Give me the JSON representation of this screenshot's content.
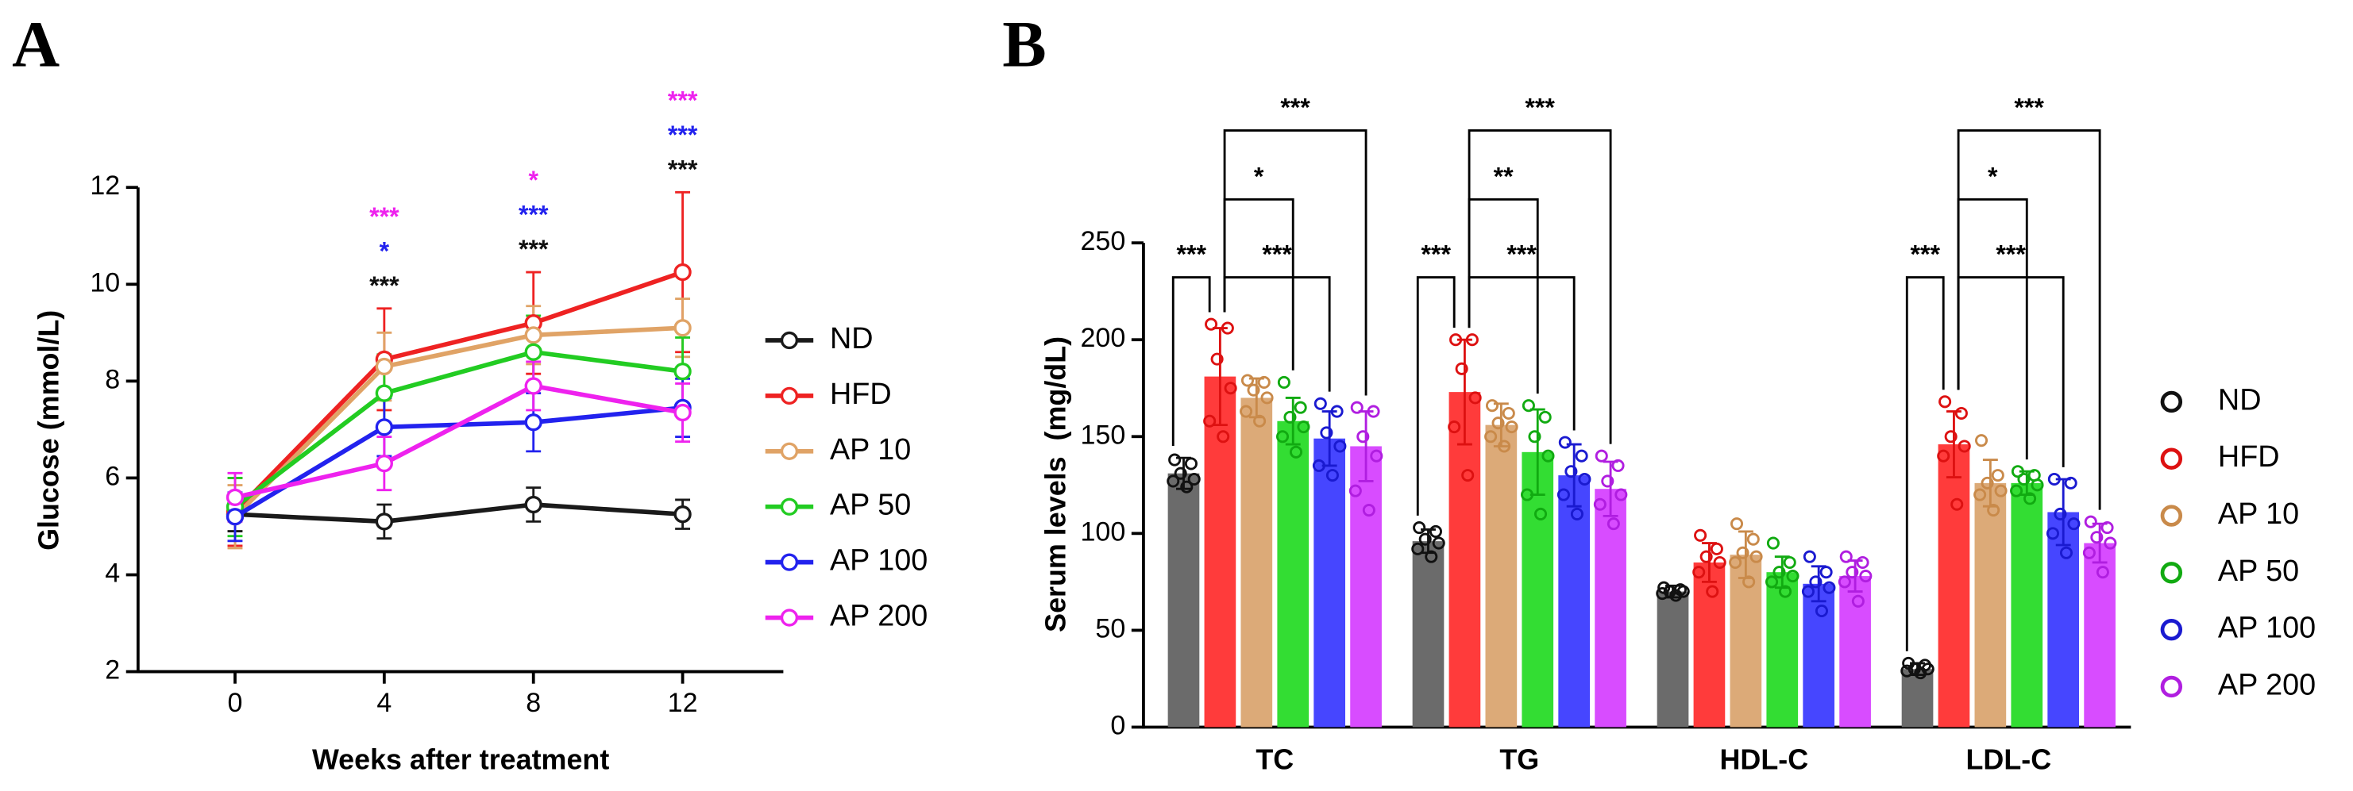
{
  "chart_data": [
    {
      "type": "line",
      "panel": "A",
      "xlabel": "Weeks after treatment",
      "ylabel": "Glucose (mmol/L)",
      "x": [
        0,
        4,
        8,
        12
      ],
      "xlim": [
        -2.6,
        14.7
      ],
      "xticks": [
        0,
        4,
        8,
        12
      ],
      "ylim": [
        2,
        12
      ],
      "yticks": [
        2,
        4,
        6,
        8,
        10,
        12
      ],
      "series": [
        {
          "name": "ND",
          "color": "#1a1a1a",
          "values": [
            5.25,
            5.1,
            5.45,
            5.25
          ],
          "errors": [
            0.35,
            0.35,
            0.35,
            0.3
          ]
        },
        {
          "name": "HFD",
          "color": "#ee2222",
          "values": [
            5.3,
            8.45,
            9.2,
            10.25
          ],
          "errors": [
            0.7,
            1.05,
            1.05,
            1.65
          ]
        },
        {
          "name": "AP 10",
          "color": "#e0a366",
          "values": [
            5.2,
            8.3,
            8.95,
            9.1
          ],
          "errors": [
            0.65,
            0.7,
            0.6,
            0.6
          ]
        },
        {
          "name": "AP 50",
          "color": "#22cc22",
          "values": [
            5.4,
            7.75,
            8.6,
            8.2
          ],
          "errors": [
            0.6,
            0.8,
            0.75,
            0.7
          ]
        },
        {
          "name": "AP 100",
          "color": "#2222ee",
          "values": [
            5.2,
            7.05,
            7.15,
            7.45
          ],
          "errors": [
            0.5,
            0.6,
            0.6,
            0.6
          ]
        },
        {
          "name": "AP 200",
          "color": "#ee22ee",
          "values": [
            5.6,
            6.3,
            7.9,
            7.35
          ],
          "errors": [
            0.5,
            0.55,
            0.5,
            0.6
          ]
        }
      ],
      "annotations": [
        {
          "x": 4,
          "labels": [
            {
              "text": "***",
              "color": "#111111"
            },
            {
              "text": "*",
              "color": "#2222ee"
            },
            {
              "text": "***",
              "color": "#ee22ee"
            }
          ]
        },
        {
          "x": 8,
          "labels": [
            {
              "text": "***",
              "color": "#111111"
            },
            {
              "text": "***",
              "color": "#2222ee"
            },
            {
              "text": "*",
              "color": "#ee22ee"
            }
          ]
        },
        {
          "x": 12,
          "labels": [
            {
              "text": "***",
              "color": "#111111"
            },
            {
              "text": "***",
              "color": "#2222ee"
            },
            {
              "text": "***",
              "color": "#ee22ee"
            }
          ]
        }
      ]
    },
    {
      "type": "bar",
      "panel": "B",
      "ylabel": "Serum levels  (mg/dL)",
      "categories": [
        "TC",
        "TG",
        "HDL-C",
        "LDL-C"
      ],
      "ylim": [
        0,
        250
      ],
      "yticks": [
        0,
        50,
        100,
        150,
        200,
        250
      ],
      "series": [
        {
          "name": "ND",
          "color": "#6b6b6b",
          "edge_color": "#111111",
          "values": [
            131,
            96,
            70,
            30
          ],
          "errors": [
            8,
            6,
            3,
            3
          ],
          "points": [
            [
              138,
              136,
              131,
              128,
              127,
              124
            ],
            [
              103,
              101,
              97,
              95,
              92,
              88
            ],
            [
              72,
              71,
              70,
              70,
              69,
              68
            ],
            [
              33,
              32,
              30,
              30,
              29,
              28
            ]
          ]
        },
        {
          "name": "HFD",
          "color": "#ff3b3b",
          "edge_color": "#dd1111",
          "values": [
            181,
            173,
            85,
            146
          ],
          "errors": [
            25,
            27,
            10,
            17
          ],
          "points": [
            [
              208,
              206,
              190,
              175,
              158,
              150
            ],
            [
              200,
              200,
              185,
              170,
              155,
              130
            ],
            [
              99,
              92,
              88,
              85,
              80,
              70
            ],
            [
              168,
              162,
              150,
              145,
              140,
              115
            ]
          ]
        },
        {
          "name": "AP 10",
          "color": "#dcaa78",
          "edge_color": "#c98a4a",
          "values": [
            170,
            156,
            89,
            126
          ],
          "errors": [
            10,
            11,
            12,
            12
          ],
          "points": [
            [
              179,
              178,
              174,
              170,
              163,
              158
            ],
            [
              166,
              162,
              157,
              155,
              150,
              145
            ],
            [
              105,
              97,
              90,
              88,
              85,
              75
            ],
            [
              148,
              130,
              126,
              122,
              120,
              112
            ]
          ]
        },
        {
          "name": "AP 50",
          "color": "#33dd33",
          "edge_color": "#11aa11",
          "values": [
            158,
            142,
            80,
            126
          ],
          "errors": [
            12,
            22,
            8,
            6
          ],
          "points": [
            [
              178,
              165,
              160,
              155,
              150,
              142
            ],
            [
              166,
              160,
              150,
              140,
              120,
              110
            ],
            [
              95,
              85,
              80,
              78,
              75,
              70
            ],
            [
              132,
              130,
              128,
              125,
              122,
              118
            ]
          ]
        },
        {
          "name": "AP 100",
          "color": "#4646ff",
          "edge_color": "#1a1ad0",
          "values": [
            149,
            130,
            74,
            111
          ],
          "errors": [
            14,
            16,
            9,
            17
          ],
          "points": [
            [
              167,
              163,
              152,
              145,
              135,
              130
            ],
            [
              147,
              140,
              132,
              128,
              120,
              110
            ],
            [
              88,
              80,
              75,
              72,
              70,
              60
            ],
            [
              128,
              126,
              110,
              105,
              100,
              90
            ]
          ]
        },
        {
          "name": "AP 200",
          "color": "#d84cff",
          "edge_color": "#b01ee0",
          "values": [
            145,
            123,
            78,
            95
          ],
          "errors": [
            18,
            14,
            8,
            10
          ],
          "points": [
            [
              165,
              163,
              150,
              140,
              122,
              112
            ],
            [
              140,
              135,
              127,
              120,
              115,
              105
            ],
            [
              88,
              85,
              80,
              78,
              75,
              65
            ],
            [
              106,
              103,
              98,
              95,
              90,
              80
            ]
          ]
        }
      ],
      "comparisons": [
        {
          "category": 0,
          "from": 0,
          "to": 1,
          "label": "***"
        },
        {
          "category": 0,
          "from": 1,
          "to": 4,
          "label": "***"
        },
        {
          "category": 0,
          "from": 1,
          "to": 3,
          "label": "*"
        },
        {
          "category": 0,
          "from": 1,
          "to": 5,
          "label": "***"
        },
        {
          "category": 1,
          "from": 0,
          "to": 1,
          "label": "***"
        },
        {
          "category": 1,
          "from": 1,
          "to": 4,
          "label": "***"
        },
        {
          "category": 1,
          "from": 1,
          "to": 3,
          "label": "**"
        },
        {
          "category": 1,
          "from": 1,
          "to": 5,
          "label": "***"
        },
        {
          "category": 3,
          "from": 0,
          "to": 1,
          "label": "***"
        },
        {
          "category": 3,
          "from": 1,
          "to": 4,
          "label": "***"
        },
        {
          "category": 3,
          "from": 1,
          "to": 3,
          "label": "*"
        },
        {
          "category": 3,
          "from": 1,
          "to": 5,
          "label": "***"
        }
      ]
    }
  ]
}
